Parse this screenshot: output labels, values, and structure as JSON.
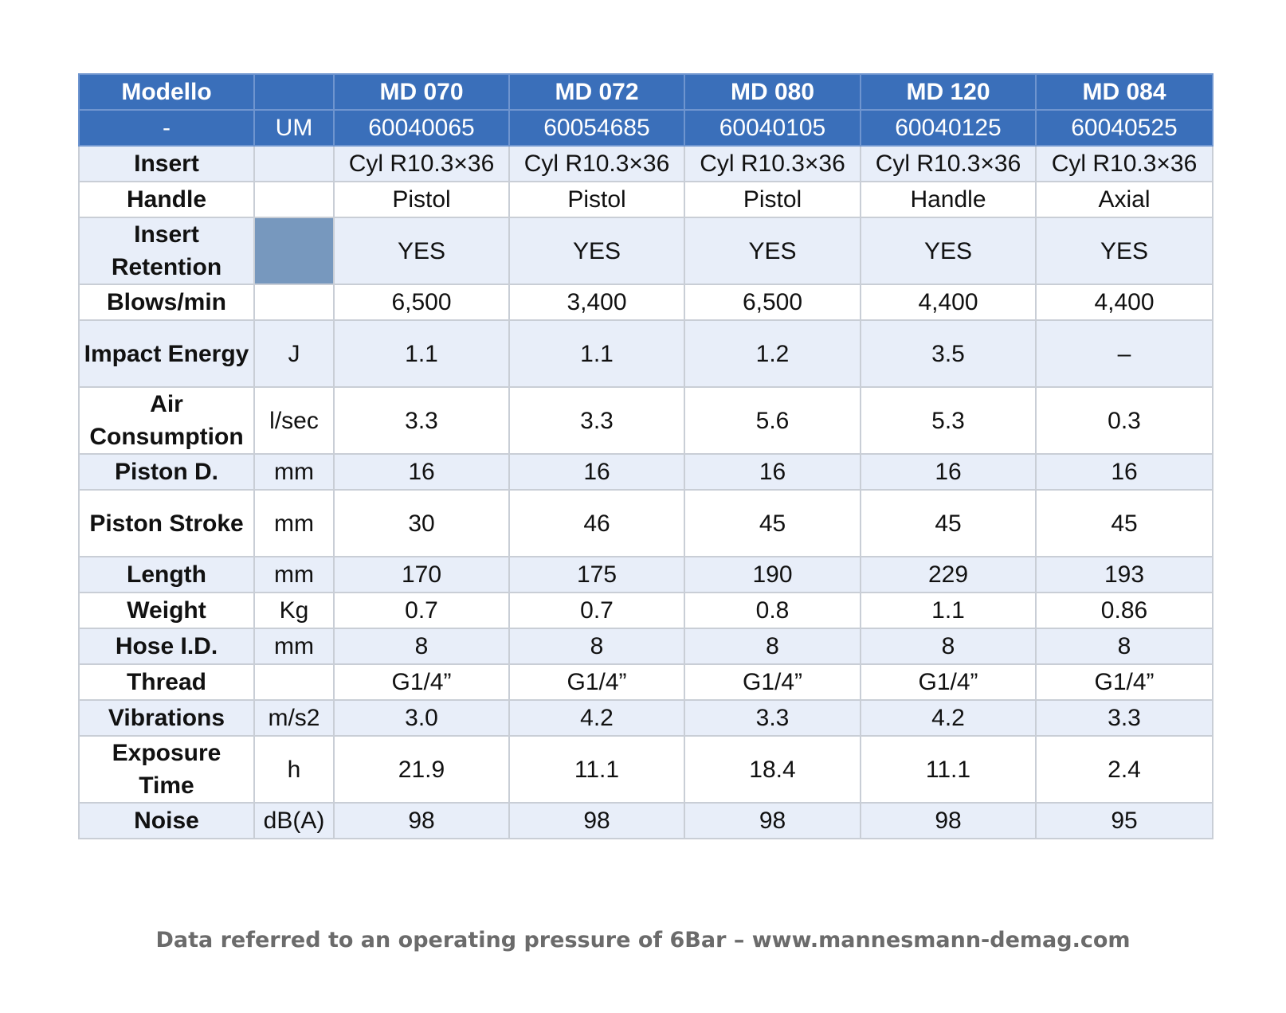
{
  "table": {
    "header": {
      "model_label": "Modello",
      "model_unit": "",
      "models": [
        "MD 070",
        "MD 072",
        "MD 080",
        "MD 120",
        "MD 084"
      ]
    },
    "code_row": {
      "label": "-",
      "unit": "UM",
      "codes": [
        "60040065",
        "60054685",
        "60040105",
        "60040125",
        "60040525"
      ]
    },
    "rows": [
      {
        "label": "Insert",
        "unit": "",
        "values": [
          "Cyl R10.3×36",
          "Cyl R10.3×36",
          "Cyl R10.3×36",
          "Cyl R10.3×36",
          "Cyl R10.3×36"
        ]
      },
      {
        "label": "Handle",
        "unit": "",
        "values": [
          "Pistol",
          "Pistol",
          "Pistol",
          "Handle",
          "Axial"
        ]
      },
      {
        "label": "Insert Retention",
        "unit": "",
        "values": [
          "YES",
          "YES",
          "YES",
          "YES",
          "YES"
        ],
        "unit_swatch_color": "#7798be"
      },
      {
        "label": "Blows/min",
        "unit": "",
        "values": [
          "6,500",
          "3,400",
          "6,500",
          "4,400",
          "4,400"
        ]
      },
      {
        "label": "Impact Energy",
        "unit": "J",
        "values": [
          "1.1",
          "1.1",
          "1.2",
          "3.5",
          "–"
        ]
      },
      {
        "label": "Air Consumption",
        "unit": "l/sec",
        "values": [
          "3.3",
          "3.3",
          "5.6",
          "5.3",
          "0.3"
        ]
      },
      {
        "label": "Piston D.",
        "unit": "mm",
        "values": [
          "16",
          "16",
          "16",
          "16",
          "16"
        ]
      },
      {
        "label": "Piston Stroke",
        "unit": "mm",
        "values": [
          "30",
          "46",
          "45",
          "45",
          "45"
        ]
      },
      {
        "label": "Length",
        "unit": "mm",
        "values": [
          "170",
          "175",
          "190",
          "229",
          "193"
        ]
      },
      {
        "label": "Weight",
        "unit": "Kg",
        "values": [
          "0.7",
          "0.7",
          "0.8",
          "1.1",
          "0.86"
        ]
      },
      {
        "label": "Hose I.D.",
        "unit": "mm",
        "values": [
          "8",
          "8",
          "8",
          "8",
          "8"
        ]
      },
      {
        "label": "Thread",
        "unit": "",
        "values": [
          "G1/4”",
          "G1/4”",
          "G1/4”",
          "G1/4”",
          "G1/4”"
        ]
      },
      {
        "label": "Vibrations",
        "unit": "m/s2",
        "values": [
          "3.0",
          "4.2",
          "3.3",
          "4.2",
          "3.3"
        ]
      },
      {
        "label": "Exposure Time",
        "unit": "h",
        "values": [
          "21.9",
          "11.1",
          "18.4",
          "11.1",
          "2.4"
        ]
      },
      {
        "label": "Noise",
        "unit": "dB(A)",
        "values": [
          "98",
          "98",
          "98",
          "98",
          "95"
        ]
      }
    ]
  },
  "colors": {
    "header_background": "#3a6fba",
    "band_light": "#e8eef9",
    "band_white": "#ffffff",
    "footer_text": "#6b6b6b"
  },
  "footer": {
    "note": "Data referred to an operating pressure of 6Bar – www.mannesmann-demag.com"
  }
}
